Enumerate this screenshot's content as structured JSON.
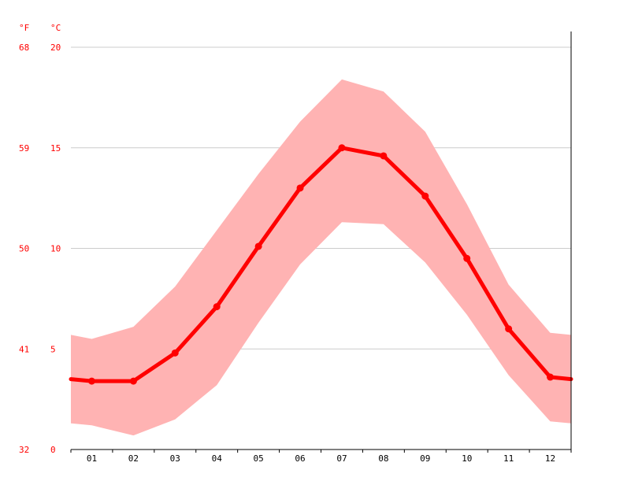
{
  "chart_data": {
    "type": "line",
    "units": {
      "left": "°F",
      "right": "°C"
    },
    "categories": [
      "01",
      "02",
      "03",
      "04",
      "05",
      "06",
      "07",
      "08",
      "09",
      "10",
      "11",
      "12"
    ],
    "y_ticks_c": [
      "20",
      "15",
      "10",
      "5",
      "0"
    ],
    "y_ticks_f": [
      "68",
      "59",
      "50",
      "41",
      "32"
    ],
    "ylim": [
      0,
      20
    ],
    "grid": true,
    "series": [
      {
        "role": "mean",
        "values": [
          3.4,
          3.4,
          4.8,
          7.1,
          10.1,
          13.0,
          15.0,
          14.6,
          12.6,
          9.5,
          6.0,
          3.6
        ]
      },
      {
        "role": "max",
        "values": [
          5.5,
          6.1,
          8.1,
          10.9,
          13.7,
          16.3,
          18.4,
          17.8,
          15.8,
          12.2,
          8.2,
          5.8
        ]
      },
      {
        "role": "min",
        "values": [
          1.2,
          0.7,
          1.5,
          3.2,
          6.3,
          9.2,
          11.3,
          11.2,
          9.3,
          6.7,
          3.7,
          1.4
        ]
      }
    ],
    "edge_values": {
      "mean": [
        3.5,
        3.5
      ],
      "max": [
        5.7,
        5.7
      ],
      "min": [
        1.3,
        1.3
      ]
    },
    "colors": {
      "line": "#ff0000",
      "band": "#ffb3b3",
      "grid": "#cccccc",
      "axis": "#000000"
    }
  }
}
